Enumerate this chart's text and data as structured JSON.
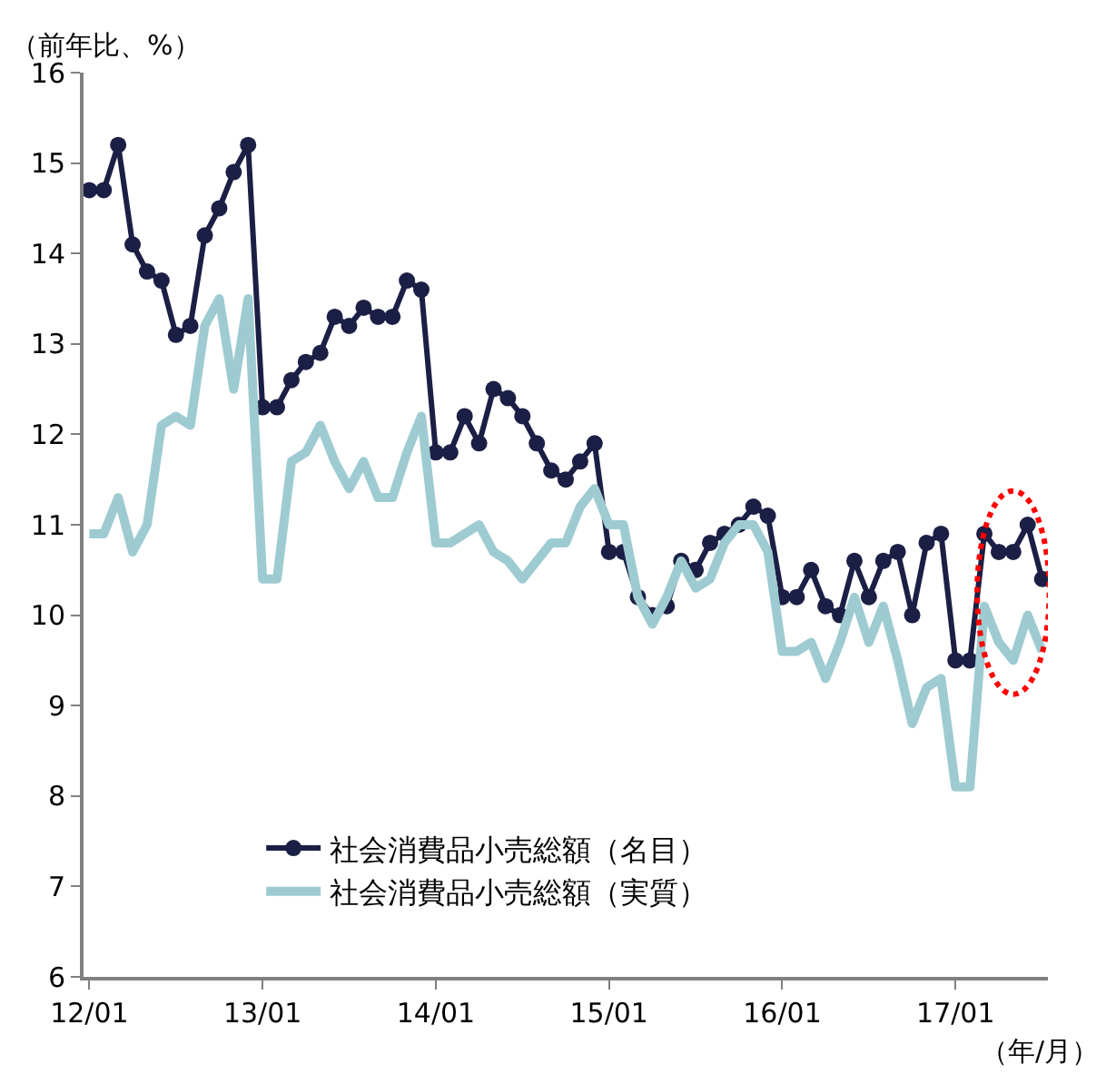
{
  "chart_data": {
    "type": "line",
    "categories": [
      "12/01",
      null,
      null,
      null,
      null,
      null,
      null,
      null,
      null,
      null,
      null,
      null,
      "13/01",
      null,
      null,
      null,
      null,
      null,
      null,
      null,
      null,
      null,
      null,
      null,
      "14/01",
      null,
      null,
      null,
      null,
      null,
      null,
      null,
      null,
      null,
      null,
      null,
      "15/01",
      null,
      null,
      null,
      null,
      null,
      null,
      null,
      null,
      null,
      null,
      null,
      "16/01",
      null,
      null,
      null,
      null,
      null,
      null,
      null,
      null,
      null,
      null,
      null,
      "17/01",
      null,
      null,
      null,
      null,
      null,
      null
    ],
    "series": [
      {
        "name": "社会消費品小売総額（名目）",
        "color": "#1c1f45",
        "marker": "circle",
        "values": [
          14.7,
          14.7,
          15.2,
          14.1,
          13.8,
          13.7,
          13.1,
          13.2,
          14.2,
          14.5,
          14.9,
          15.2,
          12.3,
          12.3,
          12.6,
          12.8,
          12.9,
          13.3,
          13.2,
          13.4,
          13.3,
          13.3,
          13.7,
          13.6,
          11.8,
          11.8,
          12.2,
          11.9,
          12.5,
          12.4,
          12.2,
          11.9,
          11.6,
          11.5,
          11.7,
          11.9,
          10.7,
          10.7,
          10.2,
          10.0,
          10.1,
          10.6,
          10.5,
          10.8,
          10.9,
          11.0,
          11.2,
          11.1,
          10.2,
          10.2,
          10.5,
          10.1,
          10.0,
          10.6,
          10.2,
          10.6,
          10.7,
          10.0,
          10.8,
          10.9,
          9.5,
          9.5,
          10.9,
          10.7,
          10.7,
          11.0,
          10.4
        ]
      },
      {
        "name": "社会消費品小売総額（実質）",
        "color": "#9ecbd2",
        "marker": "none",
        "values": [
          10.9,
          10.9,
          11.3,
          10.7,
          11.0,
          12.1,
          12.2,
          12.1,
          13.2,
          13.5,
          12.5,
          13.5,
          10.4,
          10.4,
          11.7,
          11.8,
          12.1,
          11.7,
          11.4,
          11.7,
          11.3,
          11.3,
          11.8,
          12.2,
          10.8,
          10.8,
          10.9,
          11.0,
          10.7,
          10.6,
          10.4,
          10.6,
          10.8,
          10.8,
          11.2,
          11.4,
          11.0,
          11.0,
          10.2,
          9.9,
          10.2,
          10.6,
          10.3,
          10.4,
          10.8,
          11.0,
          11.0,
          10.7,
          9.6,
          9.6,
          9.7,
          9.3,
          9.7,
          10.2,
          9.7,
          10.1,
          9.5,
          8.8,
          9.2,
          9.3,
          8.1,
          8.1,
          10.1,
          9.7,
          9.5,
          10.0,
          9.6
        ]
      }
    ],
    "ylim": [
      6,
      16
    ],
    "yticks": [
      6,
      7,
      8,
      9,
      10,
      11,
      12,
      13,
      14,
      15,
      16
    ],
    "legend": "bottom",
    "line_style": "solid",
    "annotations": [
      "（前年比、%）",
      "（年/月）"
    ]
  }
}
